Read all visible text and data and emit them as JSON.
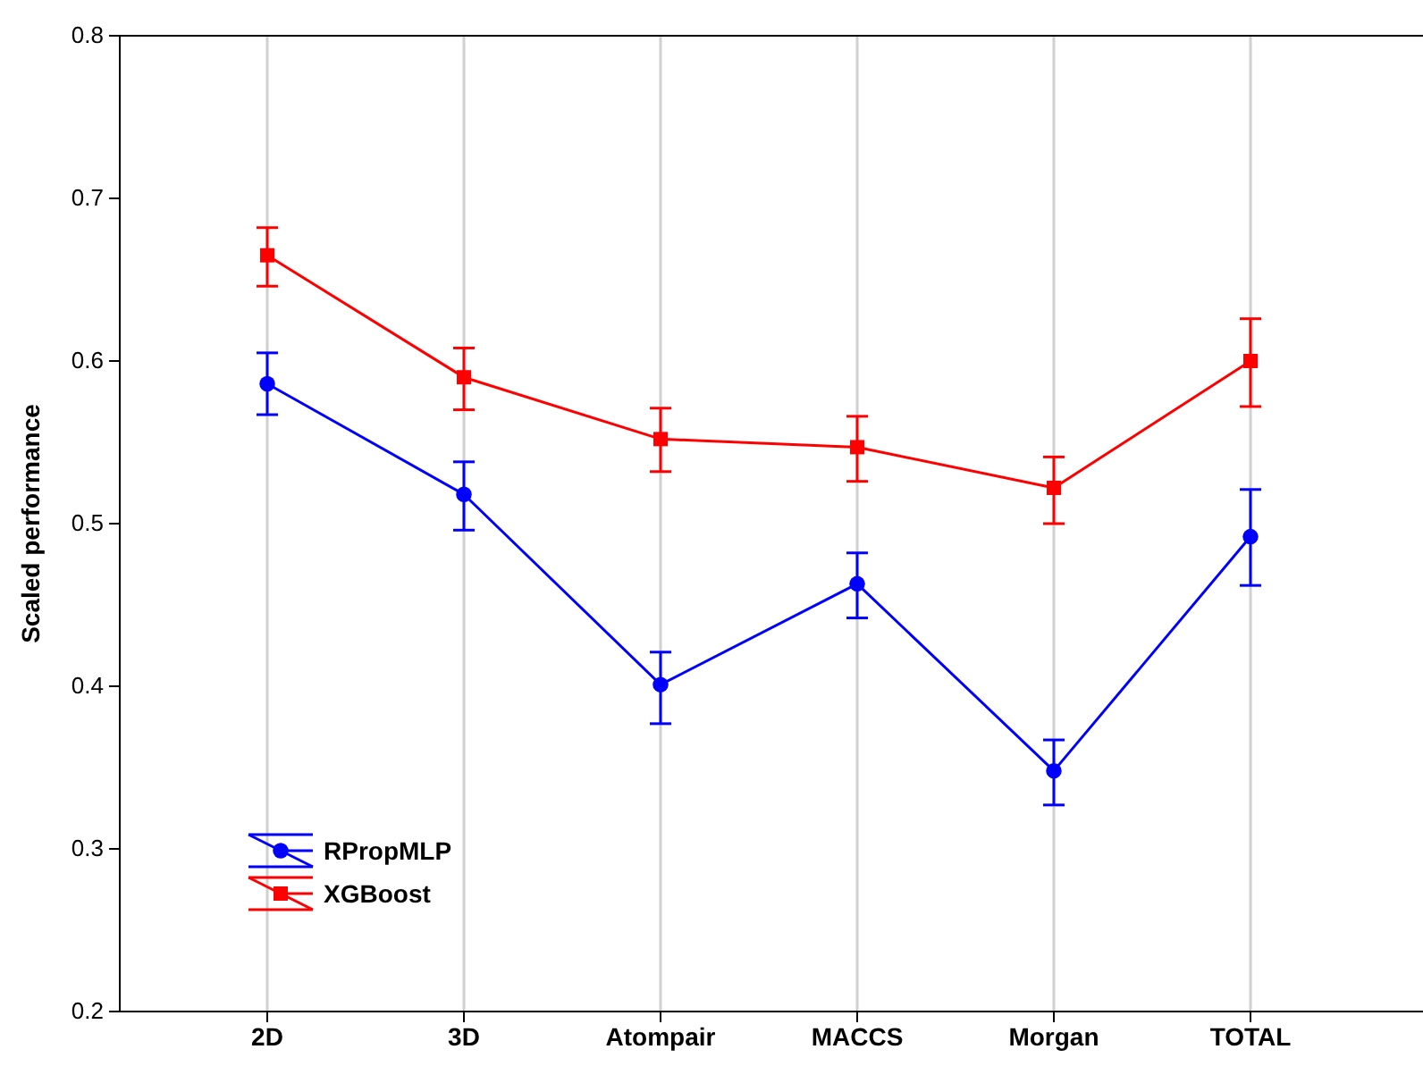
{
  "chart_data": {
    "type": "line",
    "ylabel": "Scaled performance",
    "categories": [
      "2D",
      "3D",
      "Atompair",
      "MACCS",
      "Morgan",
      "TOTAL"
    ],
    "ylim": [
      0.2,
      0.8
    ],
    "yticks": [
      0.2,
      0.3,
      0.4,
      0.5,
      0.6,
      0.7,
      0.8
    ],
    "grid": "x",
    "legend": "bottom left",
    "series": [
      {
        "name": "RPropMLP",
        "color": "#0000ff",
        "marker": "circle",
        "values": [
          0.586,
          0.518,
          0.401,
          0.463,
          0.348,
          0.492
        ],
        "errors": [
          [
            0.567,
            0.605
          ],
          [
            0.496,
            0.538
          ],
          [
            0.377,
            0.421
          ],
          [
            0.442,
            0.482
          ],
          [
            0.327,
            0.367
          ],
          [
            0.462,
            0.521
          ]
        ]
      },
      {
        "name": "XGBoost",
        "color": "#ff0000",
        "marker": "square",
        "values": [
          0.665,
          0.59,
          0.552,
          0.547,
          0.522,
          0.6
        ],
        "errors": [
          [
            0.646,
            0.682
          ],
          [
            0.57,
            0.608
          ],
          [
            0.532,
            0.571
          ],
          [
            0.526,
            0.566
          ],
          [
            0.5,
            0.541
          ],
          [
            0.572,
            0.626
          ]
        ]
      }
    ]
  }
}
